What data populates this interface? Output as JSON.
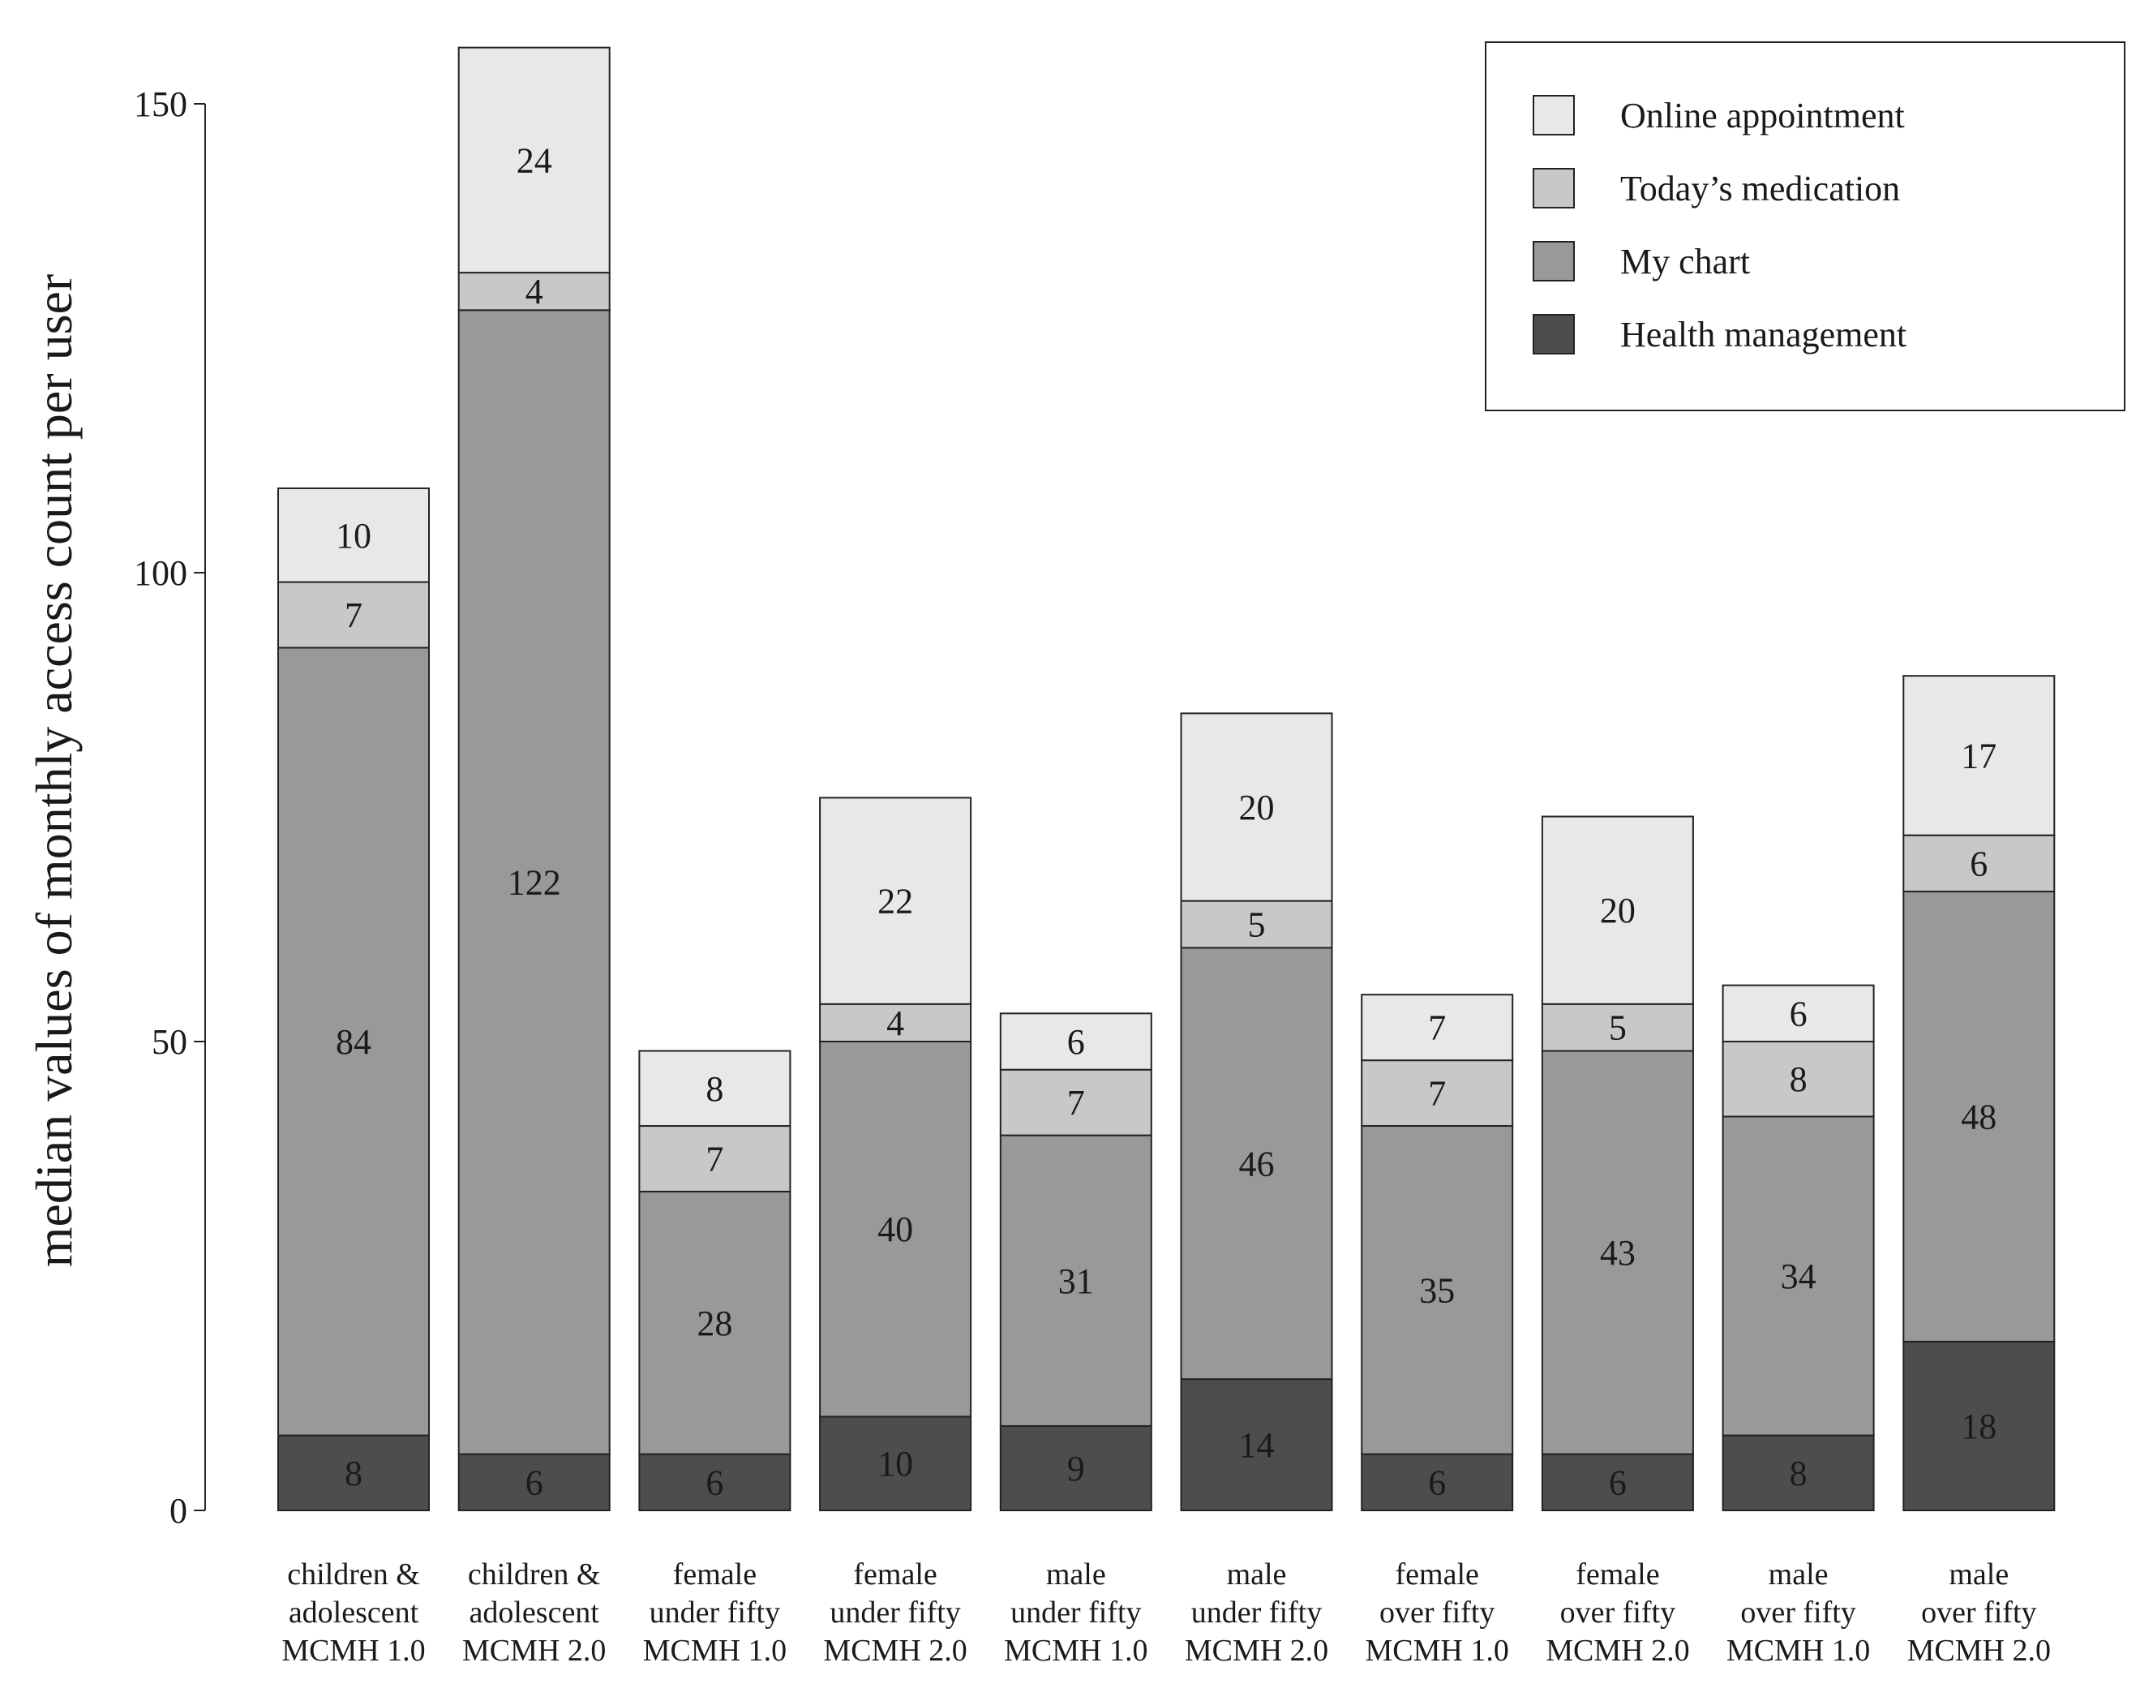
{
  "chart_data": {
    "type": "bar",
    "stacked": true,
    "title": "",
    "xlabel": "",
    "ylabel": "median values of monthly access count per user",
    "ylim": [
      0,
      156
    ],
    "yticks": [
      0,
      50,
      100,
      150
    ],
    "legend_position": "top-right",
    "categories": [
      [
        "children &",
        "adolescent",
        "MCMH 1.0"
      ],
      [
        "children &",
        "adolescent",
        "MCMH 2.0"
      ],
      [
        "female",
        "under fifty",
        "MCMH 1.0"
      ],
      [
        "female",
        "under fifty",
        "MCMH 2.0"
      ],
      [
        "male",
        "under fifty",
        "MCMH 1.0"
      ],
      [
        "male",
        "under fifty",
        "MCMH 2.0"
      ],
      [
        "female",
        "over fifty",
        "MCMH 1.0"
      ],
      [
        "female",
        "over fifty",
        "MCMH 2.0"
      ],
      [
        "male",
        "over fifty",
        "MCMH 1.0"
      ],
      [
        "male",
        "over fifty",
        "MCMH 2.0"
      ]
    ],
    "series": [
      {
        "name": "Health management",
        "color": "#4d4d4d",
        "values": [
          8,
          6,
          6,
          10,
          9,
          14,
          6,
          6,
          8,
          18
        ]
      },
      {
        "name": "My chart",
        "color": "#999999",
        "values": [
          84,
          122,
          28,
          40,
          31,
          46,
          35,
          43,
          34,
          48
        ]
      },
      {
        "name": "Today’s medication",
        "color": "#c8c8c8",
        "values": [
          7,
          4,
          7,
          4,
          7,
          5,
          7,
          5,
          8,
          6
        ]
      },
      {
        "name": "Online appointment",
        "color": "#e8e8e8",
        "values": [
          10,
          24,
          8,
          22,
          6,
          20,
          7,
          20,
          6,
          17
        ]
      }
    ],
    "legend_order": [
      "Online appointment",
      "Today’s medication",
      "My chart",
      "Health management"
    ]
  }
}
